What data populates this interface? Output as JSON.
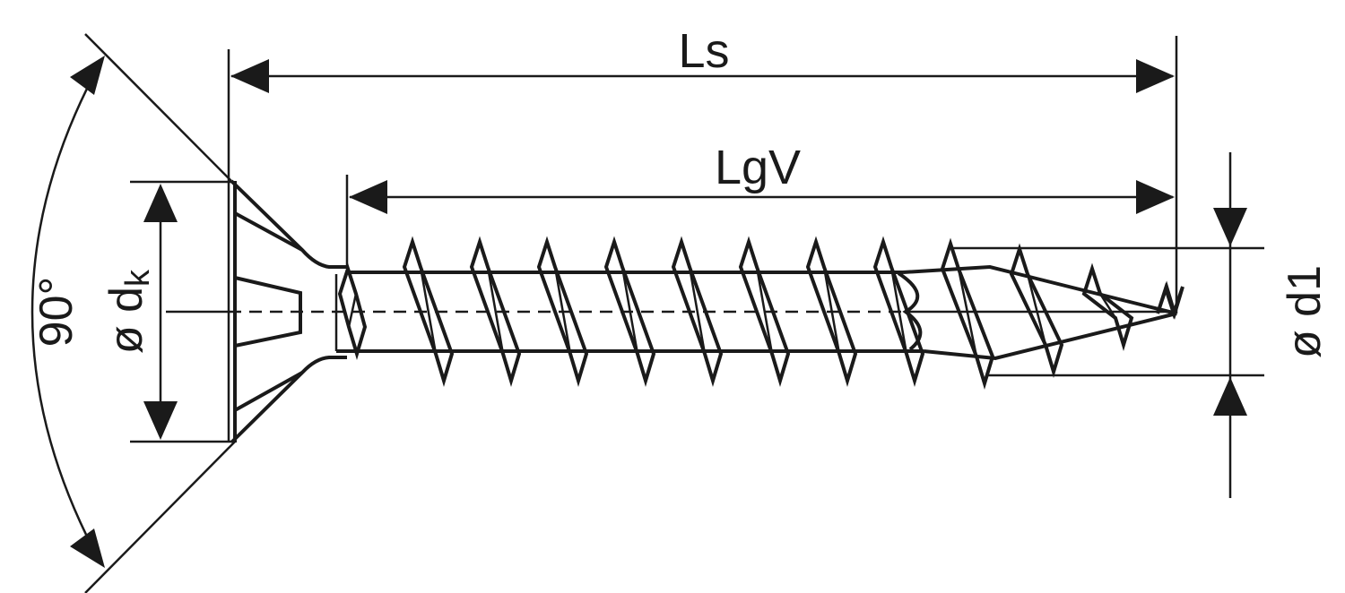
{
  "labels": {
    "total_length": "Ls",
    "thread_length": "LgV",
    "head_angle": "90°",
    "head_diameter_prefix": "ø d",
    "head_diameter_subscript": "k",
    "thread_diameter": "ø d1"
  },
  "colors": {
    "line": "#1a1a1a",
    "background": "#ffffff"
  }
}
